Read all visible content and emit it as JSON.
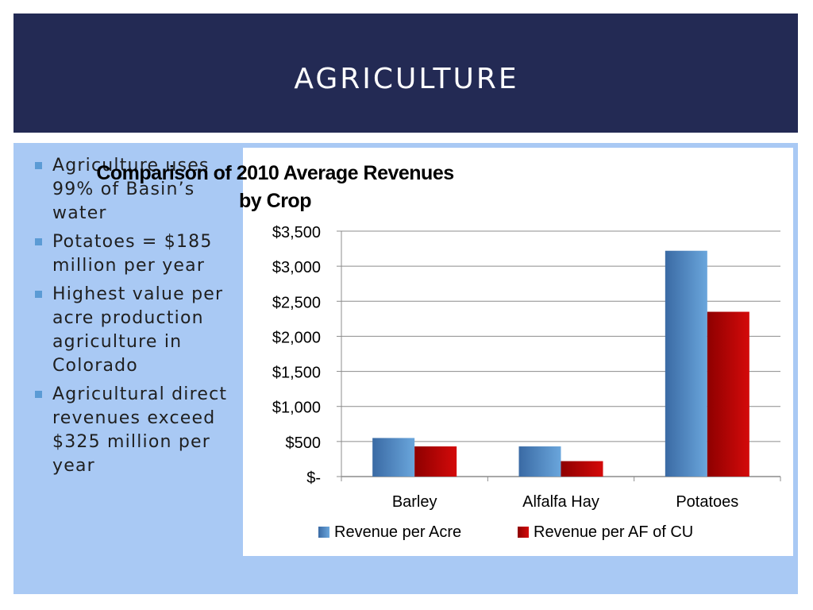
{
  "header": {
    "title": "AGRICULTURE"
  },
  "bullets": [
    "Agriculture uses 99% of Basin’s water",
    "Potatoes = $185 million per year",
    "Highest value per acre production agriculture in Colorado",
    "Agricultural direct revenues exceed $325 million per year"
  ],
  "colors": {
    "header_bg": "#232a54",
    "panel_bg": "#a9c9f4",
    "series_acre": "#4f81bd",
    "series_af": "#c00000"
  },
  "chart_data": {
    "type": "bar",
    "title_lines": [
      "Comparison of 2010 Average Revenues",
      "by Crop"
    ],
    "categories": [
      "Barley",
      "Alfalfa Hay",
      "Potatoes"
    ],
    "series": [
      {
        "name": "Revenue per Acre",
        "values": [
          550,
          430,
          3220
        ]
      },
      {
        "name": "Revenue per AF of CU",
        "values": [
          430,
          220,
          2350
        ]
      }
    ],
    "ylim": [
      0,
      3500
    ],
    "yticks": [
      0,
      500,
      1000,
      1500,
      2000,
      2500,
      3000,
      3500
    ],
    "ytick_labels": [
      "$-",
      "$500",
      "$1,000",
      "$1,500",
      "$2,000",
      "$2,500",
      "$3,000",
      "$3,500"
    ],
    "grid": true,
    "legend": "bottom"
  }
}
